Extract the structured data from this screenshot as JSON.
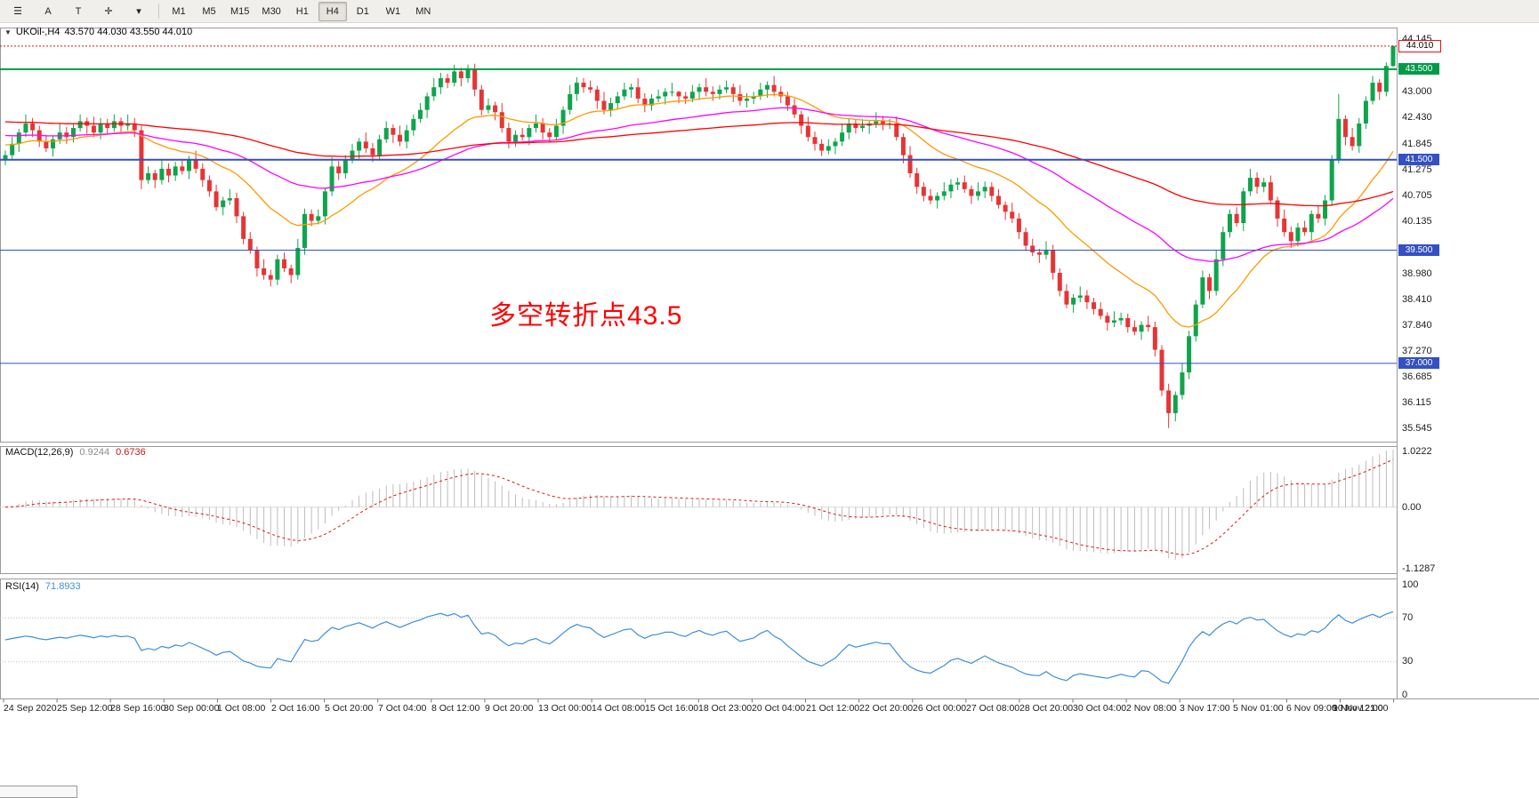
{
  "toolbar": {
    "tool_buttons": [
      {
        "name": "menu",
        "glyph": "☰"
      },
      {
        "name": "arrow-tool",
        "glyph": "A"
      },
      {
        "name": "text-tool",
        "glyph": "T"
      },
      {
        "name": "crosshair-tool",
        "glyph": "✛"
      },
      {
        "name": "more-dropdown",
        "glyph": "▾"
      }
    ],
    "timeframes": [
      "M1",
      "M5",
      "M15",
      "M30",
      "H1",
      "H4",
      "D1",
      "W1",
      "MN"
    ],
    "active_timeframe": "H4"
  },
  "chart_ui": {
    "collapse_glyph": "▼",
    "title_symbol": "UKOil-,H4",
    "title_ohlc": "43.570 44.030 43.550 44.010",
    "annotation_text": "多空转折点43.5",
    "annotation_color": "#FF0000"
  },
  "chart_data": {
    "type": "candlestick",
    "symbol": "UKOil-",
    "timeframe": "H4",
    "last_bar": {
      "open": 43.57,
      "high": 44.03,
      "low": 43.55,
      "close": 44.01
    },
    "ylim": [
      35.27,
      44.4
    ],
    "y_axis_ticks": [
      "44.145",
      "43.000",
      "42.430",
      "41.845",
      "41.275",
      "40.705",
      "40.135",
      "38.980",
      "38.410",
      "37.840",
      "37.270",
      "36.685",
      "36.115",
      "35.545"
    ],
    "x_axis_labels": [
      "24 Sep 2020",
      "25 Sep 12:00",
      "28 Sep 16:00",
      "30 Sep 00:00",
      "1 Oct 08:00",
      "2 Oct 16:00",
      "5 Oct 20:00",
      "7 Oct 04:00",
      "8 Oct 12:00",
      "9 Oct 20:00",
      "13 Oct 00:00",
      "14 Oct 08:00",
      "15 Oct 16:00",
      "18 Oct 23:00",
      "20 Oct 04:00",
      "21 Oct 12:00",
      "22 Oct 20:00",
      "26 Oct 00:00",
      "27 Oct 08:00",
      "28 Oct 20:00",
      "30 Oct 04:00",
      "2 Nov 08:00",
      "3 Nov 17:00",
      "5 Nov 01:00",
      "6 Nov 09:00",
      "9 Nov 12:00",
      "10 Nov 21:00"
    ],
    "candle_colors": {
      "up": "#0FA44C",
      "down": "#E53535"
    },
    "candles": [
      [
        41.5,
        41.7,
        41.38,
        41.6
      ],
      [
        41.6,
        42.0,
        41.52,
        41.85
      ],
      [
        41.85,
        42.18,
        41.67,
        42.1
      ],
      [
        42.1,
        42.5,
        42.0,
        42.3
      ],
      [
        42.3,
        42.42,
        42.0,
        42.15
      ],
      [
        42.15,
        42.25,
        41.78,
        41.9
      ],
      [
        41.9,
        42.05,
        41.67,
        41.75
      ],
      [
        41.75,
        42.03,
        41.57,
        41.95
      ],
      [
        41.95,
        42.3,
        41.85,
        42.1
      ],
      [
        42.1,
        42.22,
        41.85,
        42.0
      ],
      [
        42.0,
        42.3,
        41.88,
        42.2
      ],
      [
        42.2,
        42.5,
        42.12,
        42.35
      ],
      [
        42.35,
        42.43,
        42.07,
        42.25
      ],
      [
        42.25,
        42.45,
        42.0,
        42.1
      ],
      [
        42.1,
        42.42,
        41.95,
        42.3
      ],
      [
        42.3,
        42.4,
        42.08,
        42.2
      ],
      [
        42.2,
        42.5,
        42.12,
        42.35
      ],
      [
        42.35,
        42.43,
        42.07,
        42.25
      ],
      [
        42.25,
        42.5,
        42.15,
        42.3
      ],
      [
        42.3,
        42.42,
        42.0,
        42.15
      ],
      [
        42.15,
        42.25,
        40.85,
        41.05
      ],
      [
        41.05,
        41.35,
        40.97,
        41.2
      ],
      [
        41.2,
        41.28,
        40.87,
        41.05
      ],
      [
        41.05,
        41.5,
        40.95,
        41.3
      ],
      [
        41.3,
        41.42,
        41.0,
        41.15
      ],
      [
        41.15,
        41.45,
        41.03,
        41.35
      ],
      [
        41.35,
        41.5,
        41.17,
        41.25
      ],
      [
        41.25,
        41.58,
        41.07,
        41.5
      ],
      [
        41.5,
        41.7,
        41.2,
        41.3
      ],
      [
        41.3,
        41.42,
        40.9,
        41.05
      ],
      [
        41.05,
        41.15,
        40.68,
        40.8
      ],
      [
        40.8,
        40.95,
        40.37,
        40.45
      ],
      [
        40.45,
        40.68,
        40.27,
        40.6
      ],
      [
        40.6,
        40.85,
        40.5,
        40.65
      ],
      [
        40.65,
        40.77,
        40.1,
        40.25
      ],
      [
        40.25,
        40.35,
        39.63,
        39.75
      ],
      [
        39.75,
        39.9,
        39.42,
        39.5
      ],
      [
        39.5,
        39.58,
        38.92,
        39.1
      ],
      [
        39.1,
        39.3,
        38.85,
        38.95
      ],
      [
        38.95,
        39.07,
        38.7,
        38.85
      ],
      [
        38.85,
        39.4,
        38.73,
        39.3
      ],
      [
        39.3,
        39.45,
        39.02,
        39.1
      ],
      [
        39.1,
        39.18,
        38.77,
        38.95
      ],
      [
        38.95,
        39.75,
        38.85,
        39.55
      ],
      [
        39.55,
        40.42,
        39.4,
        40.3
      ],
      [
        40.3,
        40.4,
        40.03,
        40.15
      ],
      [
        40.15,
        40.4,
        40.07,
        40.25
      ],
      [
        40.25,
        40.88,
        40.07,
        40.8
      ],
      [
        40.8,
        41.55,
        40.7,
        41.35
      ],
      [
        41.35,
        41.47,
        41.05,
        41.2
      ],
      [
        41.2,
        41.6,
        41.08,
        41.5
      ],
      [
        41.5,
        41.85,
        41.42,
        41.7
      ],
      [
        41.7,
        41.98,
        41.52,
        41.9
      ],
      [
        41.9,
        42.1,
        41.65,
        41.75
      ],
      [
        41.75,
        41.87,
        41.45,
        41.6
      ],
      [
        41.6,
        42.05,
        41.48,
        41.95
      ],
      [
        41.95,
        42.35,
        41.87,
        42.2
      ],
      [
        42.2,
        42.28,
        41.87,
        42.05
      ],
      [
        42.05,
        42.25,
        41.8,
        41.9
      ],
      [
        41.9,
        42.27,
        41.75,
        42.15
      ],
      [
        42.15,
        42.5,
        42.03,
        42.4
      ],
      [
        42.4,
        42.75,
        42.32,
        42.6
      ],
      [
        42.6,
        42.98,
        42.42,
        42.9
      ],
      [
        42.9,
        43.3,
        42.8,
        43.1
      ],
      [
        43.1,
        43.42,
        42.95,
        43.3
      ],
      [
        43.3,
        43.4,
        43.08,
        43.2
      ],
      [
        43.2,
        43.6,
        43.12,
        43.45
      ],
      [
        43.45,
        43.53,
        43.12,
        43.3
      ],
      [
        43.3,
        43.6,
        43.2,
        43.5
      ],
      [
        43.5,
        43.62,
        42.9,
        43.05
      ],
      [
        43.05,
        43.15,
        42.48,
        42.6
      ],
      [
        42.6,
        42.85,
        42.52,
        42.7
      ],
      [
        42.7,
        42.78,
        42.37,
        42.55
      ],
      [
        42.55,
        42.75,
        42.1,
        42.2
      ],
      [
        42.2,
        42.32,
        41.75,
        41.9
      ],
      [
        41.9,
        42.15,
        41.78,
        42.05
      ],
      [
        42.05,
        42.2,
        41.92,
        42.0
      ],
      [
        42.0,
        42.28,
        41.82,
        42.2
      ],
      [
        42.2,
        42.5,
        42.1,
        42.3
      ],
      [
        42.3,
        42.42,
        41.95,
        42.1
      ],
      [
        42.1,
        42.2,
        41.88,
        42.0
      ],
      [
        42.0,
        42.4,
        41.92,
        42.25
      ],
      [
        42.25,
        42.68,
        42.07,
        42.6
      ],
      [
        42.6,
        43.15,
        42.5,
        42.95
      ],
      [
        42.95,
        43.32,
        42.8,
        43.2
      ],
      [
        43.2,
        43.3,
        42.98,
        43.1
      ],
      [
        43.1,
        43.25,
        42.97,
        43.05
      ],
      [
        43.05,
        43.13,
        42.62,
        42.8
      ],
      [
        42.8,
        43.0,
        42.5,
        42.6
      ],
      [
        42.6,
        42.87,
        42.45,
        42.75
      ],
      [
        42.75,
        43.0,
        42.63,
        42.9
      ],
      [
        42.9,
        43.2,
        42.82,
        43.05
      ],
      [
        43.05,
        43.18,
        42.87,
        43.1
      ],
      [
        43.1,
        43.3,
        42.75,
        42.85
      ],
      [
        42.85,
        42.97,
        42.55,
        42.7
      ],
      [
        42.7,
        42.95,
        42.58,
        42.85
      ],
      [
        42.85,
        43.05,
        42.77,
        42.9
      ],
      [
        42.9,
        43.08,
        42.72,
        43.0
      ],
      [
        43.0,
        43.2,
        42.9,
        43.0
      ],
      [
        43.0,
        43.02,
        42.75,
        42.9
      ],
      [
        42.9,
        43.0,
        42.73,
        42.85
      ],
      [
        42.85,
        43.15,
        42.77,
        43.0
      ],
      [
        43.0,
        43.18,
        42.82,
        43.1
      ],
      [
        43.1,
        43.3,
        42.9,
        43.0
      ],
      [
        43.0,
        43.12,
        42.8,
        42.95
      ],
      [
        42.95,
        43.15,
        42.83,
        43.05
      ],
      [
        43.05,
        43.25,
        42.97,
        43.1
      ],
      [
        43.1,
        43.18,
        42.77,
        42.95
      ],
      [
        42.95,
        43.15,
        42.7,
        42.8
      ],
      [
        42.8,
        42.97,
        42.65,
        42.85
      ],
      [
        42.85,
        43.0,
        42.73,
        42.9
      ],
      [
        42.9,
        43.2,
        42.82,
        43.05
      ],
      [
        43.05,
        43.23,
        42.87,
        43.15
      ],
      [
        43.15,
        43.35,
        42.9,
        43.0
      ],
      [
        43.0,
        43.12,
        42.75,
        42.9
      ],
      [
        42.9,
        43.0,
        42.58,
        42.7
      ],
      [
        42.7,
        42.85,
        42.42,
        42.5
      ],
      [
        42.5,
        42.58,
        42.07,
        42.25
      ],
      [
        42.25,
        42.45,
        41.9,
        42.0
      ],
      [
        42.0,
        42.12,
        41.7,
        41.85
      ],
      [
        41.85,
        41.95,
        41.58,
        41.7
      ],
      [
        41.7,
        41.95,
        41.62,
        41.8
      ],
      [
        41.8,
        41.98,
        41.62,
        41.9
      ],
      [
        41.9,
        42.3,
        41.8,
        42.1
      ],
      [
        42.1,
        42.42,
        41.95,
        42.3
      ],
      [
        42.3,
        42.4,
        42.08,
        42.2
      ],
      [
        42.2,
        42.4,
        42.12,
        42.25
      ],
      [
        42.25,
        42.38,
        42.07,
        42.3
      ],
      [
        42.3,
        42.55,
        42.2,
        42.35
      ],
      [
        42.35,
        42.47,
        42.15,
        42.3
      ],
      [
        42.3,
        42.4,
        42.18,
        42.3
      ],
      [
        42.3,
        42.45,
        41.92,
        42.0
      ],
      [
        42.0,
        42.08,
        41.42,
        41.6
      ],
      [
        41.6,
        41.8,
        41.1,
        41.2
      ],
      [
        41.2,
        41.32,
        40.75,
        40.9
      ],
      [
        40.9,
        41.0,
        40.58,
        40.7
      ],
      [
        40.7,
        40.85,
        40.52,
        40.6
      ],
      [
        40.6,
        40.78,
        40.42,
        40.7
      ],
      [
        40.7,
        41.0,
        40.6,
        40.8
      ],
      [
        40.8,
        41.07,
        40.65,
        40.95
      ],
      [
        40.95,
        41.1,
        40.83,
        41.0
      ],
      [
        41.0,
        41.15,
        40.77,
        40.85
      ],
      [
        40.85,
        40.93,
        40.52,
        40.7
      ],
      [
        40.7,
        41.0,
        40.6,
        40.8
      ],
      [
        40.8,
        41.02,
        40.65,
        40.9
      ],
      [
        40.9,
        41.0,
        40.58,
        40.7
      ],
      [
        40.7,
        40.85,
        40.42,
        40.5
      ],
      [
        40.5,
        40.58,
        40.17,
        40.35
      ],
      [
        40.35,
        40.55,
        40.1,
        40.2
      ],
      [
        40.2,
        40.32,
        39.75,
        39.9
      ],
      [
        39.9,
        40.0,
        39.48,
        39.6
      ],
      [
        39.6,
        39.75,
        39.37,
        39.45
      ],
      [
        39.45,
        39.53,
        39.22,
        39.4
      ],
      [
        39.4,
        39.7,
        39.3,
        39.5
      ],
      [
        39.5,
        39.62,
        38.85,
        39.0
      ],
      [
        39.0,
        39.1,
        38.48,
        38.6
      ],
      [
        38.6,
        38.75,
        38.22,
        38.3
      ],
      [
        38.3,
        38.53,
        38.12,
        38.45
      ],
      [
        38.45,
        38.7,
        38.35,
        38.5
      ],
      [
        38.5,
        38.62,
        38.2,
        38.35
      ],
      [
        38.35,
        38.45,
        38.08,
        38.2
      ],
      [
        38.2,
        38.35,
        37.97,
        38.05
      ],
      [
        38.05,
        38.13,
        37.72,
        37.9
      ],
      [
        37.9,
        38.15,
        37.8,
        37.95
      ],
      [
        37.95,
        38.12,
        37.85,
        38.0
      ],
      [
        38.0,
        38.1,
        37.68,
        37.8
      ],
      [
        37.8,
        37.95,
        37.62,
        37.7
      ],
      [
        37.7,
        37.93,
        37.52,
        37.85
      ],
      [
        37.85,
        38.05,
        37.7,
        37.8
      ],
      [
        37.8,
        37.92,
        37.15,
        37.3
      ],
      [
        37.3,
        37.4,
        36.28,
        36.4
      ],
      [
        36.4,
        36.55,
        35.57,
        35.9
      ],
      [
        35.9,
        36.38,
        35.72,
        36.3
      ],
      [
        36.3,
        37.0,
        36.2,
        36.8
      ],
      [
        36.8,
        37.72,
        36.65,
        37.6
      ],
      [
        37.6,
        38.4,
        37.48,
        38.3
      ],
      [
        38.3,
        39.05,
        38.22,
        38.9
      ],
      [
        38.9,
        38.98,
        38.42,
        38.6
      ],
      [
        38.6,
        39.5,
        38.5,
        39.3
      ],
      [
        39.3,
        40.02,
        39.15,
        39.9
      ],
      [
        39.9,
        40.4,
        39.78,
        40.3
      ],
      [
        40.3,
        40.45,
        40.02,
        40.1
      ],
      [
        40.1,
        40.88,
        39.92,
        40.8
      ],
      [
        40.8,
        41.3,
        40.7,
        41.1
      ],
      [
        41.1,
        41.22,
        40.75,
        40.9
      ],
      [
        40.9,
        41.1,
        40.78,
        41.0
      ],
      [
        41.0,
        41.15,
        40.52,
        40.6
      ],
      [
        40.6,
        40.68,
        40.02,
        40.2
      ],
      [
        40.2,
        40.4,
        39.8,
        39.9
      ],
      [
        39.9,
        40.02,
        39.55,
        39.7
      ],
      [
        39.7,
        40.1,
        39.58,
        40.0
      ],
      [
        40.0,
        40.15,
        39.82,
        39.9
      ],
      [
        39.9,
        40.38,
        39.72,
        40.3
      ],
      [
        40.3,
        40.5,
        40.1,
        40.2
      ],
      [
        40.2,
        40.72,
        40.05,
        40.6
      ],
      [
        40.6,
        41.6,
        40.48,
        41.5
      ],
      [
        41.5,
        42.95,
        41.42,
        42.4
      ],
      [
        42.4,
        42.48,
        41.82,
        42.0
      ],
      [
        42.0,
        42.2,
        41.7,
        41.8
      ],
      [
        41.8,
        42.42,
        41.65,
        42.3
      ],
      [
        42.3,
        42.9,
        42.18,
        42.8
      ],
      [
        42.8,
        43.35,
        42.72,
        43.2
      ],
      [
        43.2,
        43.28,
        42.82,
        43.0
      ],
      [
        43.0,
        43.65,
        42.9,
        43.57
      ],
      [
        43.57,
        44.03,
        43.55,
        44.01
      ]
    ],
    "moving_averages": [
      {
        "name": "ma-fast",
        "period": 21,
        "seed": 41.85,
        "color": "#FF9900"
      },
      {
        "name": "ma-mid",
        "period": 55,
        "seed": 42.05,
        "color": "#FF00FF"
      },
      {
        "name": "ma-slow",
        "period": 130,
        "seed": 42.35,
        "color": "#FF0000"
      }
    ],
    "levels": [
      {
        "value": 43.5,
        "label": "43.500",
        "color": "#009B4A",
        "line_width": 2
      },
      {
        "value": 41.5,
        "label": "41.500",
        "color": "#3450C2",
        "line_width": 2
      },
      {
        "value": 39.5,
        "label": "39.500",
        "color": "#3450C2",
        "line_width": 1
      },
      {
        "value": 37.0,
        "label": "37.000",
        "color": "#3450C2",
        "line_width": 1
      }
    ],
    "current_price": {
      "value": 44.01,
      "label": "44.010",
      "line_color": "#E01515"
    },
    "indicators": [
      {
        "type": "macd",
        "label": "MACD(12,26,9)",
        "fast": 12,
        "slow": 26,
        "signal": 9,
        "main_value": "0.9244",
        "signal_value": "0.6736",
        "scale_max": "1.0222",
        "scale_zero": "0.00",
        "scale_min": "-1.1287",
        "hist_color": "#BDBDBD",
        "signal_color": "#E01515"
      },
      {
        "type": "rsi",
        "label": "RSI(14)",
        "period": 14,
        "value": "71.8933",
        "scale_labels": [
          "100",
          "70",
          "30",
          "0"
        ],
        "guide_levels": [
          70,
          30
        ],
        "line_color": "#3D8FD8"
      }
    ]
  }
}
